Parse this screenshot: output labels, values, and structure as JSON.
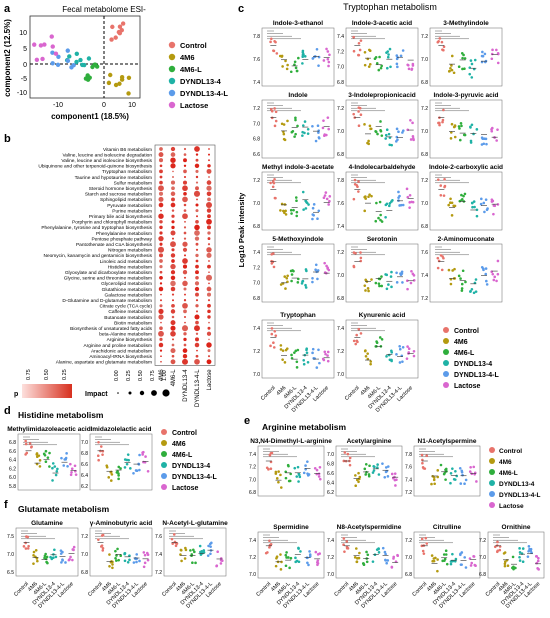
{
  "colors": {
    "Control": "#e8736b",
    "4M6": "#b49a10",
    "4M6-L": "#2fae3c",
    "DYNDL13-4": "#1fb2a6",
    "DYNDL13-4-L": "#5b9bea",
    "Lactose": "#d966cf"
  },
  "groups_abcd": [
    "Control",
    "4M6",
    "4M6-L",
    "DYNDL13-4",
    "DYNDL13-4-L",
    "Lactose"
  ],
  "groups_ef": [
    "Control",
    "4M6",
    "4M6-L",
    "DYNDL13-4",
    "DYNDL13-4-L",
    "Lactose"
  ],
  "legend_e": [
    "Control",
    "4M6",
    "4M6-L",
    "DYNDL13-4",
    "DYNDL13-4-L",
    "Lactose"
  ],
  "xaxis_groups": [
    "Control",
    "4M6",
    "4M6-L",
    "DYNDL13-4",
    "DYNDL13-4-L",
    "Lactose"
  ],
  "panel_a": {
    "label": "a",
    "title": "Fecal metabolome ESI-",
    "xlabel": "component1 (18.5%)",
    "ylabel": "component2 (12.5%)",
    "xticks": [
      "-10",
      "0",
      "10"
    ],
    "yticks": [
      "-10",
      "-5",
      "0",
      "5",
      "10"
    ]
  },
  "panel_b": {
    "label": "b",
    "pathways": [
      "Vitamin B6 metabolism",
      "Valine, leucine and isoleucine degradation",
      "Valine, leucine and isoleucine biosynthesis",
      "Ubiquinone and other terpenoid-quinone biosynthesis",
      "Tryptophan metabolism",
      "Taurine and hypotaurine metabolism",
      "Sulfur metabolism",
      "Steroid hormone biosynthesis",
      "Starch and sucrose metabolism",
      "Sphingolipid metabolism",
      "Pyruvate metabolism",
      "Purine metabolism",
      "Primary bile acid biosynthesis",
      "Porphyrin and chlorophyll metabolism",
      "Phenylalanine, tyrosine and tryptophan biosynthesis",
      "Phenylalanine metabolism",
      "Pentose phosphate pathway",
      "Pantothenate and CoA biosynthesis",
      "Nitrogen metabolism",
      "Neomycin, kanamycin and gentamicin biosynthesis",
      "Linoleic acid metabolism",
      "Histidine metabolism",
      "Glyoxylate and dicarboxylate metabolism",
      "Glycine, serine and threonine metabolism",
      "Glycerolipid metabolism",
      "Glutathione metabolism",
      "Galactose metabolism",
      "D-Glutamine and D-glutamate metabolism",
      "Citrate cycle (TCA cycle)",
      "Caffeine metabolism",
      "Butanoate metabolism",
      "Biotin metabolism",
      "Biosynthesis of unsaturated fatty acids",
      "beta-Alanine metabolism",
      "Arginine biosynthesis",
      "Arginine and proline metabolism",
      "Arachidonic acid metabolism",
      "Aminoacyl-tRNA biosynthesis",
      "Alanine, aspartate and glutamate metabolism"
    ],
    "columns": [
      "4M6",
      "4M6-L",
      "DYNDL13-4",
      "DYNDL13-4-L",
      "Lactose"
    ],
    "p_label": "p",
    "p_ticks": [
      "0.75",
      "0.50",
      "0.25"
    ],
    "impact_label": "Impact",
    "impact_ticks": [
      "0.00",
      "0.25",
      "0.50",
      "0.75",
      "1.00"
    ]
  },
  "panel_c": {
    "label": "c",
    "title": "Tryptophan metabolism",
    "ylabel": "Log10 Peak intensity",
    "metabolites": [
      "Indole-3-ethanol",
      "Indole-3-acetic acid",
      "3-Methylindole",
      "Indole",
      "3-Indolepropionicacid",
      "Indole-3-pyruvic acid",
      "Methyl indole-3-acetate",
      "4-Indolecarbaldehyde",
      "Indole-2-carboxylic acid",
      "5-Methoxyindole",
      "Serotonin",
      "2-Aminomuconate",
      "Tryptophan",
      "Kynurenic acid"
    ],
    "yticks": [
      [
        "7.8",
        "7.6",
        "7.4"
      ],
      [
        "7.4",
        "7.2",
        "7.0",
        "6.8"
      ],
      [
        "7.2",
        "7.0",
        "6.8"
      ],
      [
        "7.2",
        "7.0",
        "6.8",
        "6.6"
      ],
      [
        "7.2",
        "7.0",
        "6.8"
      ],
      [
        "7.2",
        "7.0",
        "6.8"
      ],
      [
        "7.2",
        "7.0",
        "6.8"
      ],
      [
        "7.8",
        "7.6",
        "7.4"
      ],
      [
        "7.2",
        "7.0",
        "6.8"
      ],
      [
        "7.4",
        "7.2",
        "7.0",
        "6.8"
      ],
      [
        "7.2",
        "7.0",
        "6.8"
      ],
      [
        "7.6",
        "7.4",
        "7.2"
      ],
      [
        "7.4",
        "7.2",
        "7.0"
      ],
      [
        "7.4",
        "7.2",
        "7.0"
      ]
    ]
  },
  "panel_d": {
    "label": "d",
    "title": "Histidine metabolism",
    "metabolites": [
      "Methylimidazoleacetic acid",
      "Imidazolelactic acid"
    ],
    "yticks": [
      [
        "6.8",
        "6.6",
        "6.4",
        "6.2",
        "6.0",
        "5.8"
      ],
      [
        "7.0",
        "6.8",
        "6.6",
        "6.4",
        "6.2"
      ]
    ]
  },
  "panel_e": {
    "label": "e",
    "title": "Arginine metabolism",
    "metabolites": [
      "N3,N4-Dimethyl-L-arginine",
      "Acetylarginine",
      "N1-Acetylspermine",
      "Spermidine",
      "N8-Acetylspermidine",
      "Citrulline",
      "Ornithine"
    ],
    "yticks": [
      [
        "7.4",
        "7.2",
        "7.0",
        "6.8"
      ],
      [
        "7.0",
        "6.8",
        "6.6",
        "6.4",
        "6.2"
      ],
      [
        "7.8",
        "7.6",
        "7.4",
        "7.2"
      ],
      [
        "7.4",
        "7.2",
        "7.0"
      ],
      [
        "7.4",
        "7.2",
        "7.0"
      ],
      [
        "7.2",
        "7.0",
        "6.8"
      ],
      [
        "7.2",
        "7.0",
        "6.8"
      ]
    ]
  },
  "panel_f": {
    "label": "f",
    "title": "Glutamate metabolism",
    "metabolites": [
      "Glutamine",
      "γ-Aminobutyric acid",
      "N-Acetyl-L-glutamine"
    ],
    "yticks": [
      [
        "7.5",
        "7.0",
        "6.5"
      ],
      [
        "7.2",
        "7.0",
        "6.8"
      ],
      [
        "7.6",
        "7.4",
        "7.2"
      ]
    ]
  },
  "sig_labels": [
    "****",
    "***",
    "**",
    "*",
    "ns"
  ]
}
